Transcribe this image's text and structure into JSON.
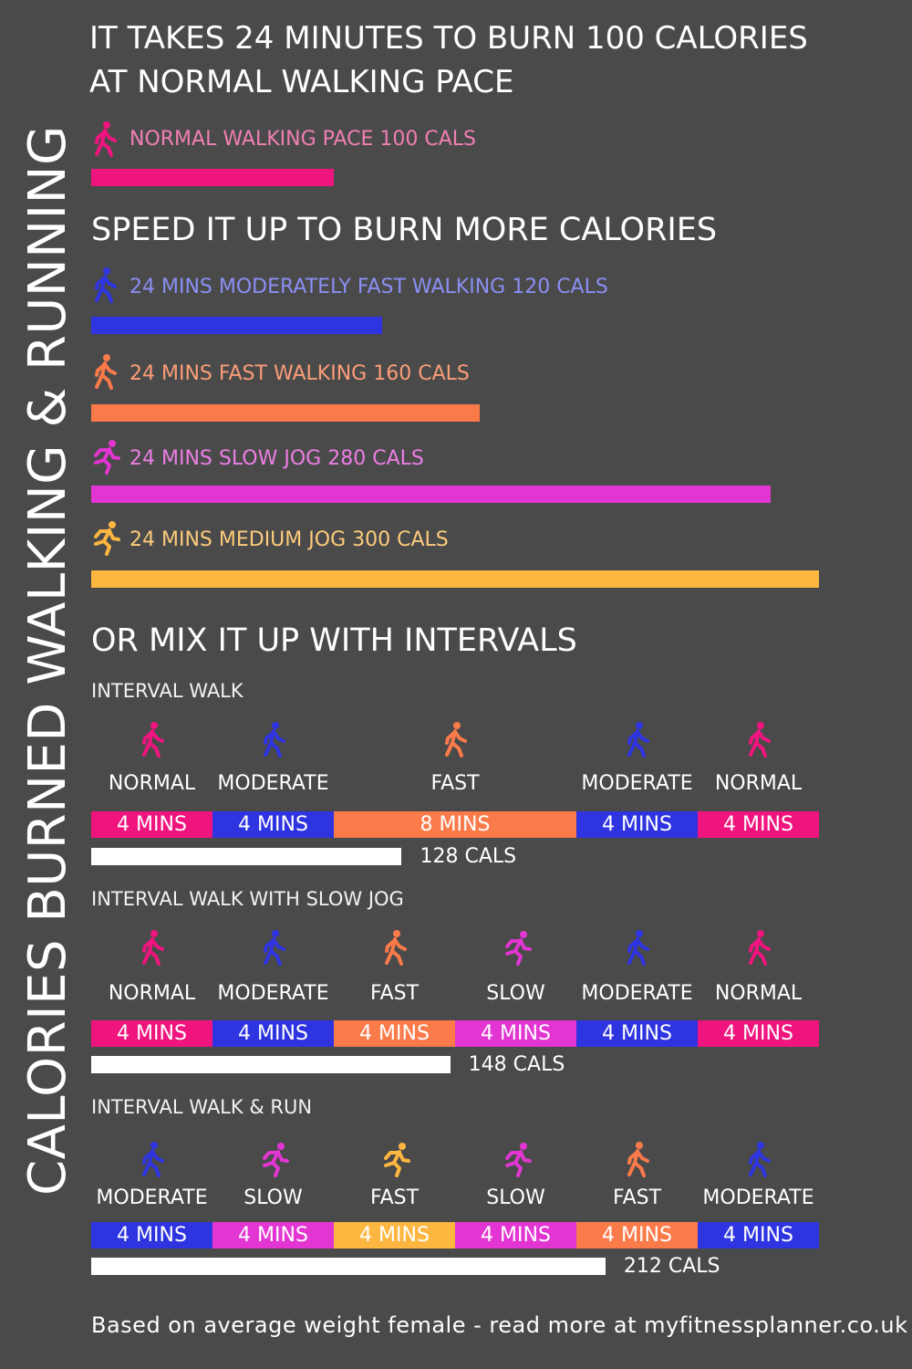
{
  "vertical_title": "CALORIES BURNED WALKING & RUNNING",
  "headline": [
    "IT TAKES 24 MINUTES TO BURN 100 CALORIES",
    "AT NORMAL WALKING PACE"
  ],
  "colors": {
    "normal": "#f0147e",
    "moderate": "#2e34e0",
    "fast_walk": "#fb7a4a",
    "slow_jog": "#e235d2",
    "medium_jog": "#fdb640",
    "background": "#4a4a4a"
  },
  "intro_bar": {
    "label": "NORMAL WALKING PACE 100 CALS",
    "icon": "walker-icon",
    "calories": 100,
    "label_color": "#f07fb4",
    "bar_color": "#f0147e"
  },
  "speed_section_title": "SPEED IT UP TO BURN MORE CALORIES",
  "speed_bars": [
    {
      "label": "24 MINS MODERATELY FAST WALKING 120 CALS",
      "icon": "walker-icon",
      "calories": 120,
      "label_color": "#8a8ff4",
      "bar_color": "#2e34e0"
    },
    {
      "label": "24 MINS FAST WALKING 160 CALS",
      "icon": "walker-icon",
      "calories": 160,
      "label_color": "#fb9d78",
      "bar_color": "#fb7a4a"
    },
    {
      "label": "24 MINS SLOW JOG 280 CALS",
      "icon": "runner-icon",
      "calories": 280,
      "label_color": "#ec7ee4",
      "bar_color": "#e235d2"
    },
    {
      "label": "24 MINS MEDIUM JOG 300 CALS",
      "icon": "runner-icon",
      "calories": 300,
      "label_color": "#fdcb7c",
      "bar_color": "#fdb640"
    }
  ],
  "interval_section_title": "OR MIX IT UP WITH INTERVALS",
  "intervals": [
    {
      "title": "INTERVAL WALK",
      "calories": 128,
      "total_label": "128 CALS",
      "segments": [
        {
          "pace": "NORMAL",
          "icon": "walker-icon",
          "minutes": 4,
          "label": "4 MINS",
          "color": "#f0147e"
        },
        {
          "pace": "MODERATE",
          "icon": "walker-icon",
          "minutes": 4,
          "label": "4 MINS",
          "color": "#2e34e0"
        },
        {
          "pace": "FAST",
          "icon": "walker-icon",
          "minutes": 8,
          "label": "8 MINS",
          "color": "#fb7a4a"
        },
        {
          "pace": "MODERATE",
          "icon": "walker-icon",
          "minutes": 4,
          "label": "4 MINS",
          "color": "#2e34e0"
        },
        {
          "pace": "NORMAL",
          "icon": "walker-icon",
          "minutes": 4,
          "label": "4 MINS",
          "color": "#f0147e"
        }
      ]
    },
    {
      "title": "INTERVAL WALK WITH SLOW JOG",
      "calories": 148,
      "total_label": "148 CALS",
      "segments": [
        {
          "pace": "NORMAL",
          "icon": "walker-icon",
          "minutes": 4,
          "label": "4 MINS",
          "color": "#f0147e"
        },
        {
          "pace": "MODERATE",
          "icon": "walker-icon",
          "minutes": 4,
          "label": "4 MINS",
          "color": "#2e34e0"
        },
        {
          "pace": "FAST",
          "icon": "walker-icon",
          "minutes": 4,
          "label": "4 MINS",
          "color": "#fb7a4a"
        },
        {
          "pace": "SLOW",
          "icon": "runner-icon",
          "minutes": 4,
          "label": "4 MINS",
          "color": "#e235d2"
        },
        {
          "pace": "MODERATE",
          "icon": "walker-icon",
          "minutes": 4,
          "label": "4 MINS",
          "color": "#2e34e0"
        },
        {
          "pace": "NORMAL",
          "icon": "walker-icon",
          "minutes": 4,
          "label": "4 MINS",
          "color": "#f0147e"
        }
      ]
    },
    {
      "title": "INTERVAL WALK & RUN",
      "calories": 212,
      "total_label": "212 CALS",
      "segments": [
        {
          "pace": "MODERATE",
          "icon": "walker-icon",
          "minutes": 4,
          "label": "4 MINS",
          "color": "#2e34e0"
        },
        {
          "pace": "SLOW",
          "icon": "runner-icon",
          "minutes": 4,
          "label": "4 MINS",
          "color": "#e235d2"
        },
        {
          "pace": "FAST",
          "icon": "runner-icon",
          "minutes": 4,
          "label": "4 MINS",
          "color": "#fdb640"
        },
        {
          "pace": "SLOW",
          "icon": "runner-icon",
          "minutes": 4,
          "label": "4 MINS",
          "color": "#e235d2"
        },
        {
          "pace": "FAST",
          "icon": "walker-icon",
          "minutes": 4,
          "label": "4 MINS",
          "color": "#fb7a4a"
        },
        {
          "pace": "MODERATE",
          "icon": "walker-icon",
          "minutes": 4,
          "label": "4 MINS",
          "color": "#2e34e0"
        }
      ]
    }
  ],
  "footer": "Based on average weight female - read more at myfitnessplanner.co.uk",
  "chart_data": [
    {
      "type": "bar",
      "categories": [
        "NORMAL WALKING PACE",
        "MODERATELY FAST WALKING",
        "FAST WALKING",
        "SLOW JOG",
        "MEDIUM JOG"
      ],
      "values": [
        100,
        120,
        160,
        280,
        300
      ],
      "xlim": [
        0,
        300
      ],
      "orientation": "horizontal"
    },
    {
      "type": "bar",
      "categories": [
        "INTERVAL WALK",
        "INTERVAL WALK WITH SLOW JOG",
        "INTERVAL WALK & RUN"
      ],
      "values": [
        128,
        148,
        212
      ],
      "orientation": "horizontal"
    }
  ]
}
